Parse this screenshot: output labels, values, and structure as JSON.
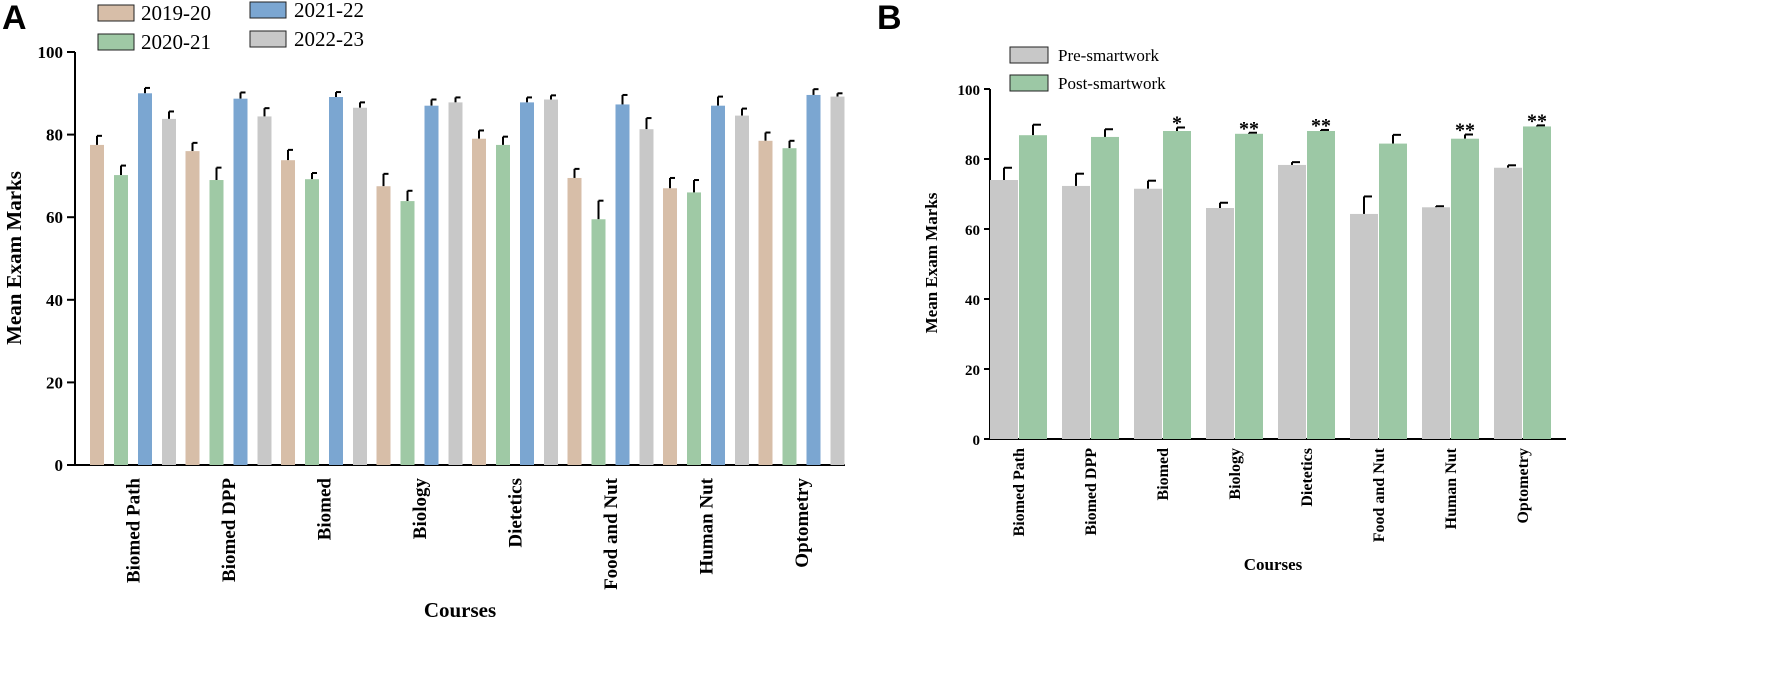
{
  "chart_data": [
    {
      "id": "A",
      "type": "bar",
      "panel_label": "A",
      "title": "",
      "xlabel": "Courses",
      "ylabel": "Mean Exam Marks",
      "ylim": [
        0,
        100
      ],
      "yticks": [
        0,
        20,
        40,
        60,
        80,
        100
      ],
      "categories": [
        "Biomed Path",
        "Biomed DPP",
        "Biomed",
        "Biology",
        "Dietetics",
        "Food and Nut",
        "Human Nut",
        "Optometry"
      ],
      "legend_position": "top-left",
      "series": [
        {
          "name": "2019-20",
          "color": "#d7bea8",
          "values": [
            77.5,
            76,
            73.8,
            67.5,
            79,
            69.5,
            67,
            78.5
          ],
          "errors": [
            2.2,
            2,
            2.5,
            3,
            2,
            2.2,
            2.5,
            2
          ]
        },
        {
          "name": "2020-21",
          "color": "#9fc9a5",
          "values": [
            70.2,
            69,
            69.2,
            63.9,
            77.5,
            59.5,
            66,
            76.7
          ],
          "errors": [
            2.3,
            3,
            1.5,
            2.5,
            2,
            4.5,
            3,
            1.8
          ]
        },
        {
          "name": "2021-22",
          "color": "#7ba6d1",
          "values": [
            90,
            88.7,
            89.1,
            87,
            87.8,
            87.3,
            87,
            89.6
          ],
          "errors": [
            1.3,
            1.5,
            1.2,
            1.5,
            1.2,
            2.3,
            2.2,
            1.4
          ]
        },
        {
          "name": "2022-23",
          "color": "#c8c8c8",
          "values": [
            83.8,
            84.4,
            86.5,
            87.8,
            88.5,
            81.3,
            84.6,
            89.2
          ],
          "errors": [
            1.8,
            2,
            1.3,
            1.2,
            1,
            2.7,
            1.7,
            0.8
          ]
        }
      ]
    },
    {
      "id": "B",
      "type": "bar",
      "panel_label": "B",
      "title": "",
      "xlabel": "Courses",
      "ylabel": "Mean Exam Marks",
      "ylim": [
        0,
        100
      ],
      "yticks": [
        0,
        20,
        40,
        60,
        80,
        100
      ],
      "categories": [
        "Biomed Path",
        "Biomed DPP",
        "Biomed",
        "Biology",
        "Dietetics",
        "Food and Nut",
        "Human Nut",
        "Optometry"
      ],
      "legend_position": "top-left",
      "significance": [
        "",
        "",
        "*",
        "**",
        "**",
        "",
        "**",
        "**"
      ],
      "series": [
        {
          "name": "Pre-smartwork",
          "color": "#c8c8c8",
          "values": [
            74,
            72.3,
            71.5,
            66,
            78.3,
            64.3,
            66.2,
            77.5
          ],
          "errors": [
            3.5,
            3.5,
            2.3,
            1.5,
            0.8,
            5,
            0.3,
            0.7
          ]
        },
        {
          "name": "Post-smartwork",
          "color": "#9cc8a5",
          "values": [
            86.8,
            86.3,
            88,
            87.2,
            88,
            84.4,
            85.8,
            89.3
          ],
          "errors": [
            3,
            2.2,
            1,
            0.3,
            0.3,
            2.5,
            1.2,
            0.3
          ]
        }
      ]
    }
  ]
}
